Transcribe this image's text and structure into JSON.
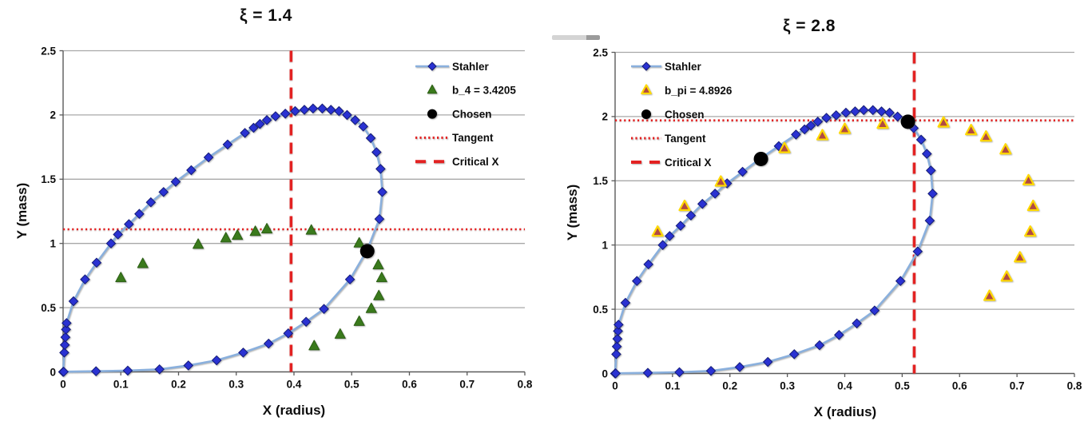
{
  "figure": {
    "background": "#ffffff"
  },
  "chart_data": [
    {
      "type": "line",
      "title": "ξ = 1.4",
      "xlabel": "X (radius)",
      "ylabel": "Y (mass)",
      "xlim": [
        0,
        0.8
      ],
      "ylim": [
        0,
        2.5
      ],
      "x_tick_values": [
        0,
        0.1,
        0.2,
        0.3,
        0.4,
        0.5,
        0.6,
        0.7,
        0.8
      ],
      "x_tick_labels": [
        "0",
        "0.1",
        "0.2",
        "0.3",
        "0.4",
        "0.5",
        "0.6",
        "0.7",
        "0.8"
      ],
      "y_tick_values": [
        0,
        0.5,
        1,
        1.5,
        2,
        2.5
      ],
      "y_tick_labels": [
        "0",
        "0.5",
        "1",
        "1.5",
        "2",
        "2.5"
      ],
      "grid": "horizontal",
      "legend_position": "top-right",
      "colors": {
        "gridline": "#a8a8a8",
        "axis": "#5a5a5a",
        "red_line": "#e32222"
      },
      "series": [
        {
          "id": "stahler",
          "label": "Stahler",
          "type": "line-diamond",
          "line_color": "#8ab0dd",
          "marker_color": "#2a32d2",
          "marker_edge": "#141c78",
          "points": [
            [
              0,
              0
            ],
            [
              0.002,
              0.15
            ],
            [
              0.003,
              0.21
            ],
            [
              0.004,
              0.27
            ],
            [
              0.005,
              0.33
            ],
            [
              0.006,
              0.38
            ],
            [
              0.018,
              0.55
            ],
            [
              0.038,
              0.72
            ],
            [
              0.058,
              0.85
            ],
            [
              0.083,
              1.0
            ],
            [
              0.095,
              1.07
            ],
            [
              0.114,
              1.15
            ],
            [
              0.132,
              1.23
            ],
            [
              0.152,
              1.32
            ],
            [
              0.174,
              1.4
            ],
            [
              0.195,
              1.48
            ],
            [
              0.222,
              1.57
            ],
            [
              0.252,
              1.67
            ],
            [
              0.285,
              1.77
            ],
            [
              0.315,
              1.86
            ],
            [
              0.33,
              1.9
            ],
            [
              0.341,
              1.93
            ],
            [
              0.353,
              1.96
            ],
            [
              0.368,
              1.99
            ],
            [
              0.385,
              2.01
            ],
            [
              0.402,
              2.03
            ],
            [
              0.418,
              2.04
            ],
            [
              0.433,
              2.05
            ],
            [
              0.449,
              2.05
            ],
            [
              0.464,
              2.04
            ],
            [
              0.478,
              2.03
            ],
            [
              0.492,
              2.0
            ],
            [
              0.506,
              1.96
            ],
            [
              0.52,
              1.91
            ],
            [
              0.533,
              1.82
            ],
            [
              0.543,
              1.71
            ],
            [
              0.55,
              1.58
            ],
            [
              0.553,
              1.4
            ],
            [
              0.548,
              1.19
            ],
            [
              0.527,
              0.95
            ],
            [
              0.497,
              0.72
            ],
            [
              0.452,
              0.49
            ],
            [
              0.421,
              0.39
            ],
            [
              0.39,
              0.3
            ],
            [
              0.356,
              0.22
            ],
            [
              0.312,
              0.15
            ],
            [
              0.266,
              0.09
            ],
            [
              0.217,
              0.05
            ],
            [
              0.167,
              0.02
            ],
            [
              0.112,
              0.01
            ],
            [
              0.057,
              0.005
            ],
            [
              0.001,
              0.001
            ]
          ]
        },
        {
          "id": "b_4",
          "label": "b_4 = 3.4205",
          "type": "triangle",
          "fill": "#3a7a1c",
          "edge": "#2c5f14",
          "edge_width": 1,
          "points": [
            [
              0.1,
              0.73
            ],
            [
              0.138,
              0.84
            ],
            [
              0.234,
              0.99
            ],
            [
              0.282,
              1.04
            ],
            [
              0.302,
              1.06
            ],
            [
              0.333,
              1.09
            ],
            [
              0.353,
              1.11
            ],
            [
              0.43,
              1.1
            ],
            [
              0.513,
              1.0
            ],
            [
              0.546,
              0.83
            ],
            [
              0.552,
              0.73
            ],
            [
              0.547,
              0.59
            ],
            [
              0.534,
              0.49
            ],
            [
              0.513,
              0.39
            ],
            [
              0.48,
              0.29
            ],
            [
              0.435,
              0.2
            ]
          ]
        },
        {
          "id": "chosen",
          "label": "Chosen",
          "type": "circle",
          "fill": "#000000",
          "points": [
            [
              0.527,
              0.94
            ]
          ]
        },
        {
          "id": "tangent",
          "label": "Tangent",
          "type": "hline",
          "color": "#e32222",
          "y": 1.11
        },
        {
          "id": "critical",
          "label": "Critical X",
          "type": "vline",
          "color": "#e32222",
          "x": 0.395
        }
      ]
    },
    {
      "type": "line",
      "title": "ξ = 2.8",
      "xlabel": "X (radius)",
      "ylabel": "Y (mass)",
      "xlim": [
        0,
        0.8
      ],
      "ylim": [
        0,
        2.5
      ],
      "x_tick_values": [
        0,
        0.1,
        0.2,
        0.3,
        0.4,
        0.5,
        0.6,
        0.7,
        0.8
      ],
      "x_tick_labels": [
        "0",
        "0.1",
        "0.2",
        "0.3",
        "0.4",
        "0.5",
        "0.6",
        "0.7",
        "0.8"
      ],
      "y_tick_values": [
        0,
        0.5,
        1,
        1.5,
        2,
        2.5
      ],
      "y_tick_labels": [
        "0",
        "0.5",
        "1",
        "1.5",
        "2",
        "2.5"
      ],
      "grid": "horizontal",
      "legend_position": "top-left",
      "colors": {
        "gridline": "#a8a8a8",
        "axis": "#5a5a5a",
        "red_line": "#e32222"
      },
      "series": [
        {
          "id": "stahler",
          "label": "Stahler",
          "type": "line-diamond",
          "line_color": "#8ab0dd",
          "marker_color": "#2a32d2",
          "marker_edge": "#141c78",
          "points": [
            [
              0,
              0
            ],
            [
              0.002,
              0.15
            ],
            [
              0.003,
              0.21
            ],
            [
              0.004,
              0.27
            ],
            [
              0.005,
              0.33
            ],
            [
              0.006,
              0.38
            ],
            [
              0.018,
              0.55
            ],
            [
              0.038,
              0.72
            ],
            [
              0.058,
              0.85
            ],
            [
              0.083,
              1.0
            ],
            [
              0.095,
              1.07
            ],
            [
              0.114,
              1.15
            ],
            [
              0.132,
              1.23
            ],
            [
              0.152,
              1.32
            ],
            [
              0.174,
              1.4
            ],
            [
              0.195,
              1.48
            ],
            [
              0.222,
              1.57
            ],
            [
              0.252,
              1.67
            ],
            [
              0.285,
              1.77
            ],
            [
              0.315,
              1.86
            ],
            [
              0.33,
              1.9
            ],
            [
              0.341,
              1.93
            ],
            [
              0.353,
              1.96
            ],
            [
              0.368,
              1.99
            ],
            [
              0.385,
              2.01
            ],
            [
              0.402,
              2.03
            ],
            [
              0.418,
              2.04
            ],
            [
              0.433,
              2.05
            ],
            [
              0.449,
              2.05
            ],
            [
              0.464,
              2.04
            ],
            [
              0.478,
              2.03
            ],
            [
              0.492,
              2.0
            ],
            [
              0.506,
              1.96
            ],
            [
              0.52,
              1.91
            ],
            [
              0.533,
              1.82
            ],
            [
              0.543,
              1.71
            ],
            [
              0.55,
              1.58
            ],
            [
              0.553,
              1.4
            ],
            [
              0.548,
              1.19
            ],
            [
              0.527,
              0.95
            ],
            [
              0.497,
              0.72
            ],
            [
              0.452,
              0.49
            ],
            [
              0.421,
              0.39
            ],
            [
              0.39,
              0.3
            ],
            [
              0.356,
              0.22
            ],
            [
              0.312,
              0.15
            ],
            [
              0.266,
              0.09
            ],
            [
              0.217,
              0.05
            ],
            [
              0.167,
              0.02
            ],
            [
              0.112,
              0.01
            ],
            [
              0.057,
              0.005
            ],
            [
              0.001,
              0.001
            ]
          ]
        },
        {
          "id": "b_pi",
          "label": "b_pi = 4.8926",
          "type": "triangle",
          "fill": "#b04a42",
          "edge": "#ffd900",
          "edge_width": 2.2,
          "points": [
            [
              0.074,
              1.1
            ],
            [
              0.121,
              1.3
            ],
            [
              0.184,
              1.49
            ],
            [
              0.295,
              1.75
            ],
            [
              0.361,
              1.85
            ],
            [
              0.4,
              1.9
            ],
            [
              0.466,
              1.94
            ],
            [
              0.572,
              1.95
            ],
            [
              0.62,
              1.89
            ],
            [
              0.646,
              1.84
            ],
            [
              0.68,
              1.74
            ],
            [
              0.72,
              1.5
            ],
            [
              0.728,
              1.3
            ],
            [
              0.723,
              1.1
            ],
            [
              0.705,
              0.9
            ],
            [
              0.682,
              0.75
            ],
            [
              0.652,
              0.6
            ]
          ]
        },
        {
          "id": "chosen",
          "label": "Chosen",
          "type": "circle",
          "fill": "#000000",
          "points": [
            [
              0.254,
              1.67
            ],
            [
              0.51,
              1.96
            ]
          ]
        },
        {
          "id": "tangent",
          "label": "Tangent",
          "type": "hline",
          "color": "#e32222",
          "y": 1.97
        },
        {
          "id": "critical",
          "label": "Critical X",
          "type": "vline",
          "color": "#e32222",
          "x": 0.521
        }
      ]
    }
  ]
}
